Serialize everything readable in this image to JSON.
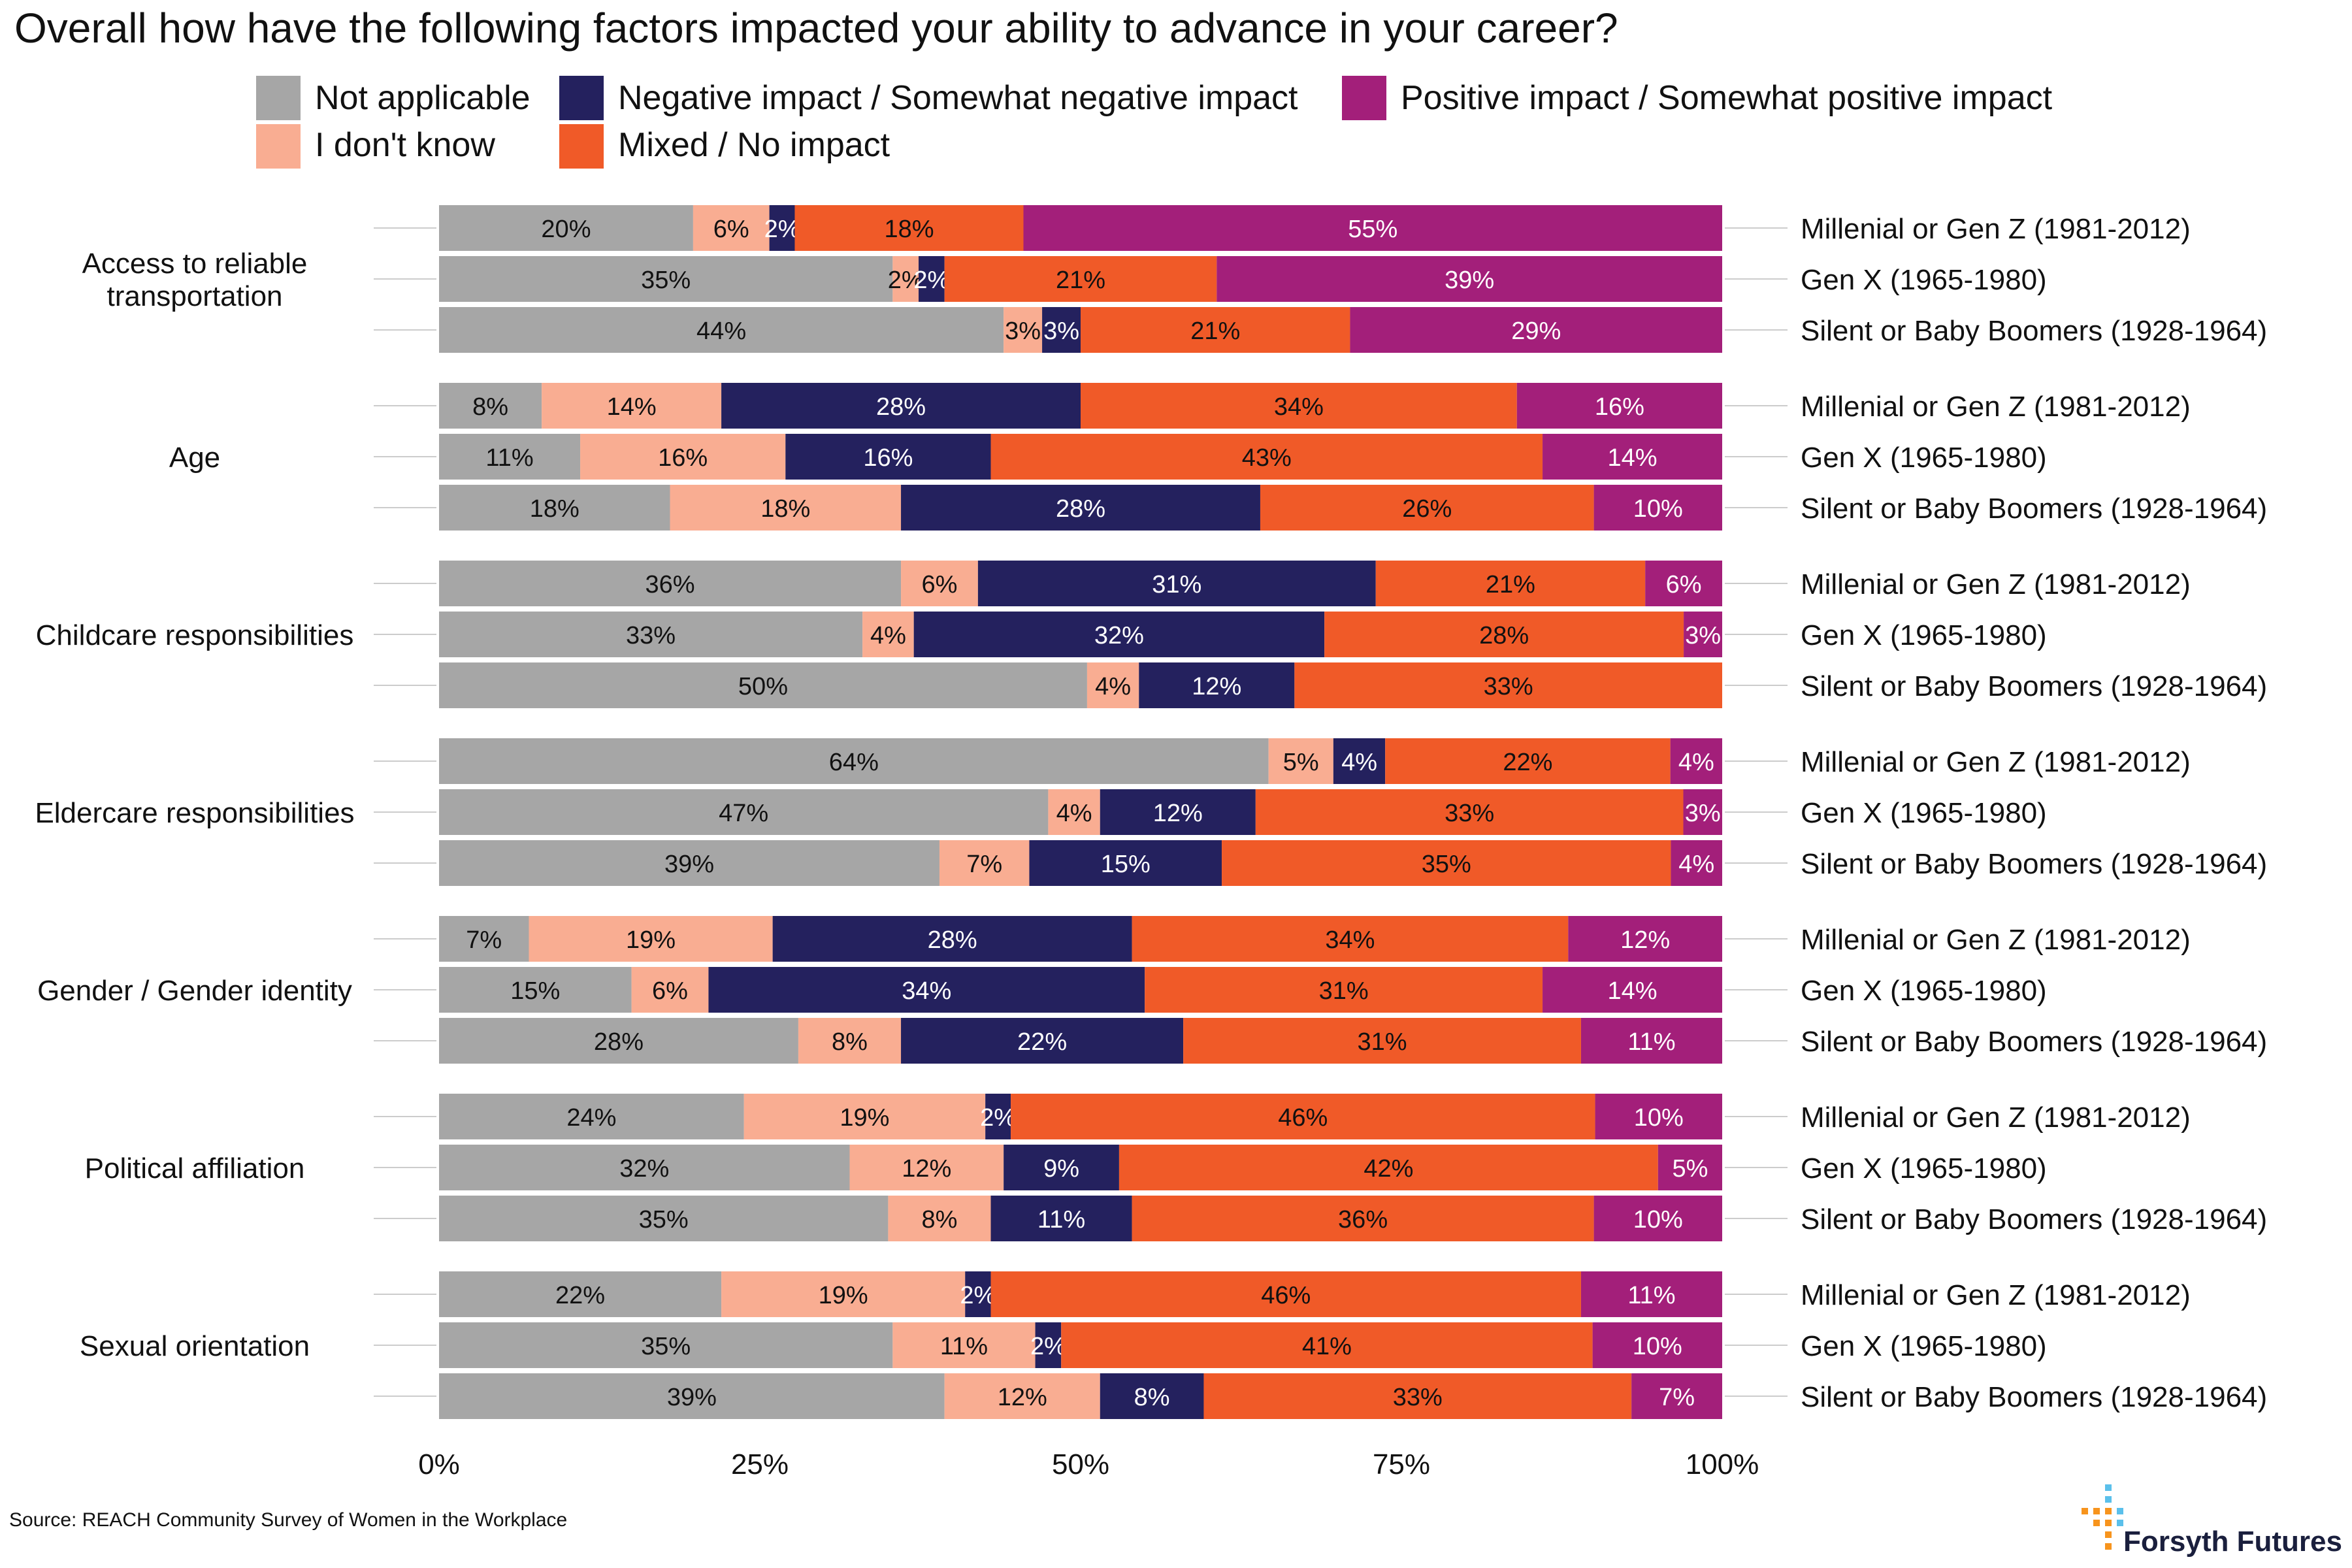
{
  "title": "Overall how have the following factors impacted your ability to advance in your career?",
  "source": "Source: REACH Community Survey of Women in the Workplace",
  "brand": "Forsyth Futures",
  "legend": [
    {
      "name": "Not applicable",
      "color": "#a6a6a6"
    },
    {
      "name": "I don't know",
      "color": "#f9ad92"
    },
    {
      "name": "Negative impact / Somewhat negative impact",
      "color": "#24215e"
    },
    {
      "name": "Mixed / No impact",
      "color": "#f05a28"
    },
    {
      "name": "Positive impact / Somewhat positive impact",
      "color": "#a31f7a"
    }
  ],
  "chart_data": {
    "type": "bar",
    "orientation": "horizontal",
    "stacked": true,
    "normalized": true,
    "x_ticks": [
      "0%",
      "25%",
      "50%",
      "75%",
      "100%"
    ],
    "xlim": [
      0,
      100
    ],
    "legend_position": "top",
    "series_names": [
      "Not applicable",
      "I don't know",
      "Negative impact / Somewhat negative impact",
      "Mixed / No impact",
      "Positive impact / Somewhat positive impact"
    ],
    "label_colors": [
      "#111111",
      "#111111",
      "#ffffff",
      "#111111",
      "#ffffff"
    ],
    "groups": [
      {
        "label": [
          "Access to reliable",
          "transportation"
        ],
        "bars": [
          {
            "label": "Millenial or Gen Z (1981-2012)",
            "values": [
              20,
              6,
              2,
              18,
              55
            ]
          },
          {
            "label": "Gen X (1965-1980)",
            "values": [
              35,
              2,
              2,
              21,
              39
            ]
          },
          {
            "label": "Silent or Baby Boomers (1928-1964)",
            "values": [
              44,
              3,
              3,
              21,
              29
            ]
          }
        ]
      },
      {
        "label": [
          "Age"
        ],
        "bars": [
          {
            "label": "Millenial or Gen Z (1981-2012)",
            "values": [
              8,
              14,
              28,
              34,
              16
            ]
          },
          {
            "label": "Gen X (1965-1980)",
            "values": [
              11,
              16,
              16,
              43,
              14
            ]
          },
          {
            "label": "Silent or Baby Boomers (1928-1964)",
            "values": [
              18,
              18,
              28,
              26,
              10
            ]
          }
        ]
      },
      {
        "label": [
          "Childcare responsibilities"
        ],
        "bars": [
          {
            "label": "Millenial or Gen Z (1981-2012)",
            "values": [
              36,
              6,
              31,
              21,
              6
            ]
          },
          {
            "label": "Gen X (1965-1980)",
            "values": [
              33,
              4,
              32,
              28,
              3
            ]
          },
          {
            "label": "Silent or Baby Boomers (1928-1964)",
            "values": [
              50,
              4,
              12,
              33,
              0
            ]
          }
        ]
      },
      {
        "label": [
          "Eldercare responsibilities"
        ],
        "bars": [
          {
            "label": "Millenial or Gen Z (1981-2012)",
            "values": [
              64,
              5,
              4,
              22,
              4
            ]
          },
          {
            "label": "Gen X (1965-1980)",
            "values": [
              47,
              4,
              12,
              33,
              3
            ]
          },
          {
            "label": "Silent or Baby Boomers (1928-1964)",
            "values": [
              39,
              7,
              15,
              35,
              4
            ]
          }
        ]
      },
      {
        "label": [
          "Gender / Gender identity"
        ],
        "bars": [
          {
            "label": "Millenial or Gen Z (1981-2012)",
            "values": [
              7,
              19,
              28,
              34,
              12
            ]
          },
          {
            "label": "Gen X (1965-1980)",
            "values": [
              15,
              6,
              34,
              31,
              14
            ]
          },
          {
            "label": "Silent or Baby Boomers (1928-1964)",
            "values": [
              28,
              8,
              22,
              31,
              11
            ]
          }
        ]
      },
      {
        "label": [
          "Political affiliation"
        ],
        "bars": [
          {
            "label": "Millenial or Gen Z (1981-2012)",
            "values": [
              24,
              19,
              2,
              46,
              10
            ]
          },
          {
            "label": "Gen X (1965-1980)",
            "values": [
              32,
              12,
              9,
              42,
              5
            ]
          },
          {
            "label": "Silent or Baby Boomers (1928-1964)",
            "values": [
              35,
              8,
              11,
              36,
              10
            ]
          }
        ]
      },
      {
        "label": [
          "Sexual orientation"
        ],
        "bars": [
          {
            "label": "Millenial or Gen Z (1981-2012)",
            "values": [
              22,
              19,
              2,
              46,
              11
            ]
          },
          {
            "label": "Gen X (1965-1980)",
            "values": [
              35,
              11,
              2,
              41,
              10
            ]
          },
          {
            "label": "Silent or Baby Boomers (1928-1964)",
            "values": [
              39,
              12,
              8,
              33,
              7
            ]
          }
        ]
      }
    ]
  }
}
